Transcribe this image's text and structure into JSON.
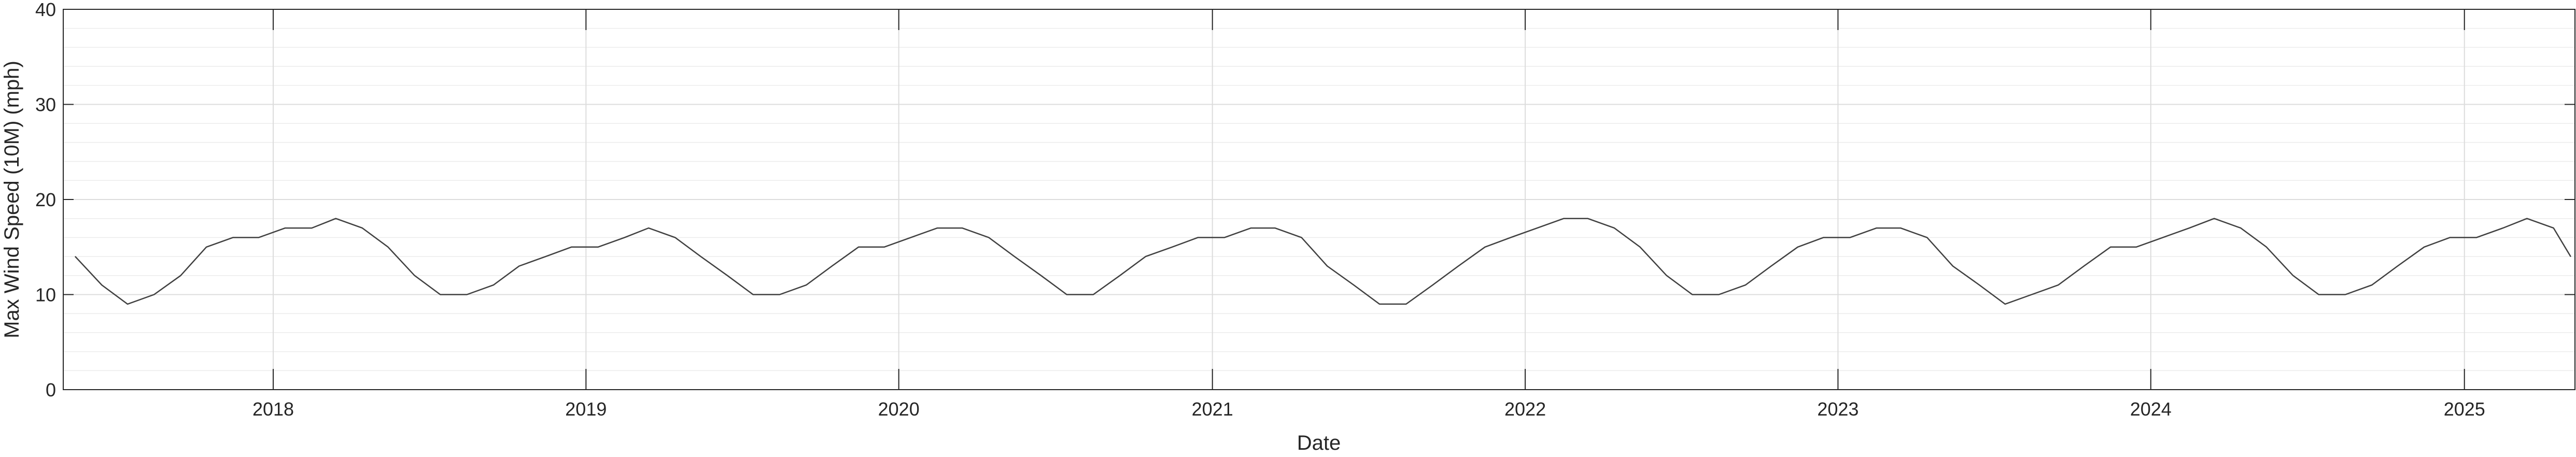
{
  "chart_data": {
    "type": "line",
    "title": "",
    "xlabel": "Date",
    "ylabel": "Max Wind Speed (10M) (mph)",
    "x_start": "2017-05-01",
    "x_end": "2025-05-10",
    "x_ticks": [
      "2018",
      "2019",
      "2020",
      "2021",
      "2022",
      "2023",
      "2024",
      "2025"
    ],
    "y_ticks": [
      0,
      10,
      20,
      30,
      40
    ],
    "ylim": [
      0,
      40
    ],
    "grid": true,
    "minor_grid": true,
    "legend": "none",
    "series": [
      {
        "color": "#404040",
        "sampling": "monthly",
        "points": [
          [
            "2017-05-15",
            14
          ],
          [
            "2017-06-15",
            11
          ],
          [
            "2017-07-15",
            9
          ],
          [
            "2017-08-15",
            10
          ],
          [
            "2017-09-15",
            12
          ],
          [
            "2017-10-15",
            15
          ],
          [
            "2017-11-15",
            16
          ],
          [
            "2017-12-15",
            16
          ],
          [
            "2018-01-15",
            17
          ],
          [
            "2018-02-15",
            17
          ],
          [
            "2018-03-15",
            18
          ],
          [
            "2018-04-15",
            17
          ],
          [
            "2018-05-15",
            15
          ],
          [
            "2018-06-15",
            12
          ],
          [
            "2018-07-15",
            10
          ],
          [
            "2018-08-15",
            10
          ],
          [
            "2018-09-15",
            11
          ],
          [
            "2018-10-15",
            13
          ],
          [
            "2018-11-15",
            14
          ],
          [
            "2018-12-15",
            15
          ],
          [
            "2019-01-15",
            15
          ],
          [
            "2019-02-15",
            16
          ],
          [
            "2019-03-15",
            17
          ],
          [
            "2019-04-15",
            16
          ],
          [
            "2019-05-15",
            14
          ],
          [
            "2019-06-15",
            12
          ],
          [
            "2019-07-15",
            10
          ],
          [
            "2019-08-15",
            10
          ],
          [
            "2019-09-15",
            11
          ],
          [
            "2019-10-15",
            13
          ],
          [
            "2019-11-15",
            15
          ],
          [
            "2019-12-15",
            15
          ],
          [
            "2020-01-15",
            16
          ],
          [
            "2020-02-15",
            17
          ],
          [
            "2020-03-15",
            17
          ],
          [
            "2020-04-15",
            16
          ],
          [
            "2020-05-15",
            14
          ],
          [
            "2020-06-15",
            12
          ],
          [
            "2020-07-15",
            10
          ],
          [
            "2020-08-15",
            10
          ],
          [
            "2020-09-15",
            12
          ],
          [
            "2020-10-15",
            14
          ],
          [
            "2020-11-15",
            15
          ],
          [
            "2020-12-15",
            16
          ],
          [
            "2021-01-15",
            16
          ],
          [
            "2021-02-15",
            17
          ],
          [
            "2021-03-15",
            17
          ],
          [
            "2021-04-15",
            16
          ],
          [
            "2021-05-15",
            13
          ],
          [
            "2021-06-15",
            11
          ],
          [
            "2021-07-15",
            9
          ],
          [
            "2021-08-15",
            9
          ],
          [
            "2021-09-15",
            11
          ],
          [
            "2021-10-15",
            13
          ],
          [
            "2021-11-15",
            15
          ],
          [
            "2021-12-15",
            16
          ],
          [
            "2022-01-15",
            17
          ],
          [
            "2022-02-15",
            18
          ],
          [
            "2022-03-15",
            18
          ],
          [
            "2022-04-15",
            17
          ],
          [
            "2022-05-15",
            15
          ],
          [
            "2022-06-15",
            12
          ],
          [
            "2022-07-15",
            10
          ],
          [
            "2022-08-15",
            10
          ],
          [
            "2022-09-15",
            11
          ],
          [
            "2022-10-15",
            13
          ],
          [
            "2022-11-15",
            15
          ],
          [
            "2022-12-15",
            16
          ],
          [
            "2023-01-15",
            16
          ],
          [
            "2023-02-15",
            17
          ],
          [
            "2023-03-15",
            17
          ],
          [
            "2023-04-15",
            16
          ],
          [
            "2023-05-15",
            13
          ],
          [
            "2023-06-15",
            11
          ],
          [
            "2023-07-15",
            9
          ],
          [
            "2023-08-15",
            10
          ],
          [
            "2023-09-15",
            11
          ],
          [
            "2023-10-15",
            13
          ],
          [
            "2023-11-15",
            15
          ],
          [
            "2023-12-15",
            15
          ],
          [
            "2024-01-15",
            16
          ],
          [
            "2024-02-15",
            17
          ],
          [
            "2024-03-15",
            18
          ],
          [
            "2024-04-15",
            17
          ],
          [
            "2024-05-15",
            15
          ],
          [
            "2024-06-15",
            12
          ],
          [
            "2024-07-15",
            10
          ],
          [
            "2024-08-15",
            10
          ],
          [
            "2024-09-15",
            11
          ],
          [
            "2024-10-15",
            13
          ],
          [
            "2024-11-15",
            15
          ],
          [
            "2024-12-15",
            16
          ],
          [
            "2025-01-15",
            16
          ],
          [
            "2025-02-15",
            17
          ],
          [
            "2025-03-15",
            18
          ],
          [
            "2025-04-15",
            17
          ],
          [
            "2025-05-05",
            14
          ]
        ]
      }
    ]
  }
}
